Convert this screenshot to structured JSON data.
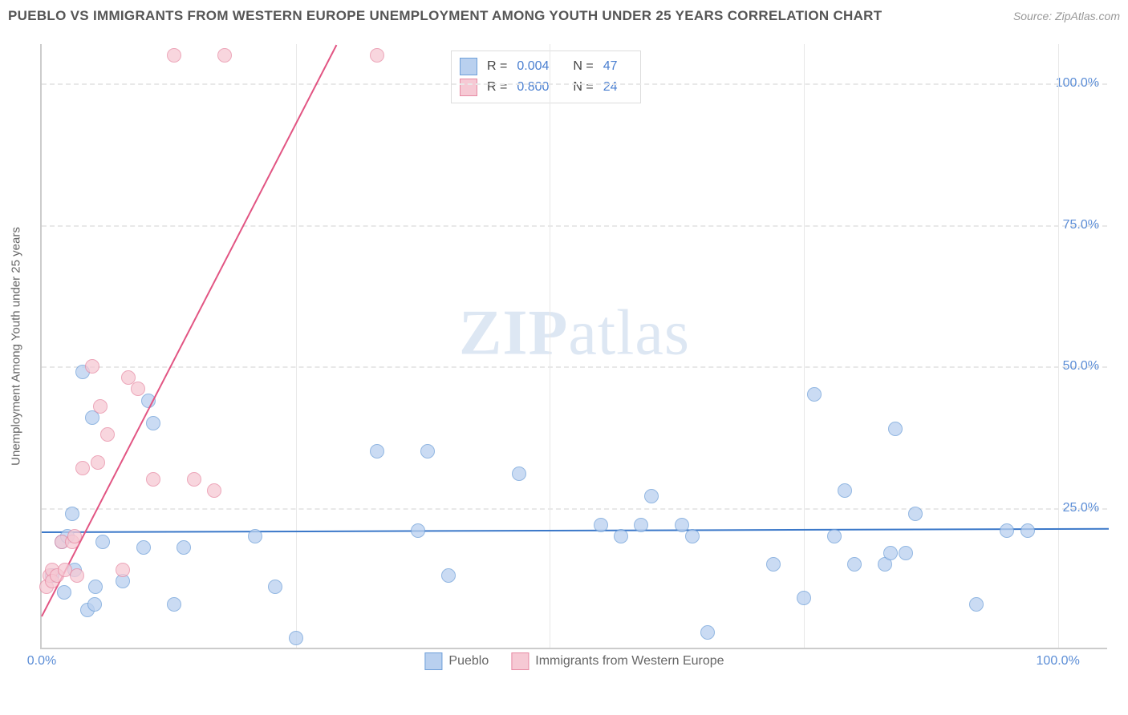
{
  "header": {
    "title": "PUEBLO VS IMMIGRANTS FROM WESTERN EUROPE UNEMPLOYMENT AMONG YOUTH UNDER 25 YEARS CORRELATION CHART",
    "source_prefix": "Source: ",
    "source": "ZipAtlas.com"
  },
  "watermark": {
    "bold": "ZIP",
    "light": "atlas"
  },
  "chart": {
    "type": "scatter",
    "yaxis_label": "Unemployment Among Youth under 25 years",
    "xlim": [
      0,
      105
    ],
    "ylim": [
      0,
      107
    ],
    "background_color": "#ffffff",
    "grid_color": "#e8e8e8",
    "axis_color": "#cccccc",
    "yticks": [
      {
        "v": 25,
        "label": "25.0%"
      },
      {
        "v": 50,
        "label": "50.0%"
      },
      {
        "v": 75,
        "label": "75.0%"
      },
      {
        "v": 100,
        "label": "100.0%"
      }
    ],
    "xticks": [
      {
        "v": 0,
        "label": "0.0%"
      },
      {
        "v": 25,
        "label": ""
      },
      {
        "v": 50,
        "label": ""
      },
      {
        "v": 75,
        "label": ""
      },
      {
        "v": 100,
        "label": "100.0%"
      }
    ],
    "series": [
      {
        "key": "pueblo",
        "label": "Pueblo",
        "fill": "#b9d0ef",
        "stroke": "#6e9fd9",
        "trend_color": "#3b78c9",
        "R_label": "R =",
        "R": "0.004",
        "N_label": "N =",
        "N": "47",
        "trend": {
          "x1": 0,
          "y1": 20.8,
          "x2": 105,
          "y2": 21.4
        },
        "points": [
          {
            "x": 1,
            "y": 13
          },
          {
            "x": 2,
            "y": 19
          },
          {
            "x": 2.2,
            "y": 10
          },
          {
            "x": 2.5,
            "y": 20
          },
          {
            "x": 3,
            "y": 24
          },
          {
            "x": 3.2,
            "y": 14
          },
          {
            "x": 4,
            "y": 49
          },
          {
            "x": 4.5,
            "y": 7
          },
          {
            "x": 5,
            "y": 41
          },
          {
            "x": 5.2,
            "y": 8
          },
          {
            "x": 5.3,
            "y": 11
          },
          {
            "x": 6,
            "y": 19
          },
          {
            "x": 8,
            "y": 12
          },
          {
            "x": 10,
            "y": 18
          },
          {
            "x": 10.5,
            "y": 44
          },
          {
            "x": 11,
            "y": 40
          },
          {
            "x": 13,
            "y": 8
          },
          {
            "x": 14,
            "y": 18
          },
          {
            "x": 21,
            "y": 20
          },
          {
            "x": 23,
            "y": 11
          },
          {
            "x": 25,
            "y": 2
          },
          {
            "x": 33,
            "y": 35
          },
          {
            "x": 37,
            "y": 21
          },
          {
            "x": 38,
            "y": 35
          },
          {
            "x": 40,
            "y": 13
          },
          {
            "x": 47,
            "y": 31
          },
          {
            "x": 55,
            "y": 22
          },
          {
            "x": 57,
            "y": 20
          },
          {
            "x": 59,
            "y": 22
          },
          {
            "x": 60,
            "y": 27
          },
          {
            "x": 63,
            "y": 22
          },
          {
            "x": 64,
            "y": 20
          },
          {
            "x": 65.5,
            "y": 3
          },
          {
            "x": 72,
            "y": 15
          },
          {
            "x": 75,
            "y": 9
          },
          {
            "x": 76,
            "y": 45
          },
          {
            "x": 78,
            "y": 20
          },
          {
            "x": 79,
            "y": 28
          },
          {
            "x": 80,
            "y": 15
          },
          {
            "x": 83,
            "y": 15
          },
          {
            "x": 83.5,
            "y": 17
          },
          {
            "x": 84,
            "y": 39
          },
          {
            "x": 85,
            "y": 17
          },
          {
            "x": 86,
            "y": 24
          },
          {
            "x": 92,
            "y": 8
          },
          {
            "x": 95,
            "y": 21
          },
          {
            "x": 97,
            "y": 21
          }
        ]
      },
      {
        "key": "immigrants",
        "label": "Immigrants from Western Europe",
        "fill": "#f6c9d4",
        "stroke": "#e78aa3",
        "trend_color": "#e25583",
        "R_label": "R =",
        "R": "0.800",
        "N_label": "N =",
        "N": "24",
        "trend": {
          "x1": 0,
          "y1": 6,
          "x2": 29,
          "y2": 107
        },
        "points": [
          {
            "x": 0.5,
            "y": 11
          },
          {
            "x": 0.8,
            "y": 13
          },
          {
            "x": 1,
            "y": 14
          },
          {
            "x": 1,
            "y": 12
          },
          {
            "x": 1.5,
            "y": 13
          },
          {
            "x": 2,
            "y": 19
          },
          {
            "x": 2.3,
            "y": 14
          },
          {
            "x": 3,
            "y": 19
          },
          {
            "x": 3.2,
            "y": 20
          },
          {
            "x": 3.5,
            "y": 13
          },
          {
            "x": 4,
            "y": 32
          },
          {
            "x": 5,
            "y": 50
          },
          {
            "x": 5.5,
            "y": 33
          },
          {
            "x": 5.8,
            "y": 43
          },
          {
            "x": 6.5,
            "y": 38
          },
          {
            "x": 8,
            "y": 14
          },
          {
            "x": 8.5,
            "y": 48
          },
          {
            "x": 9.5,
            "y": 46
          },
          {
            "x": 11,
            "y": 30
          },
          {
            "x": 13,
            "y": 105
          },
          {
            "x": 15,
            "y": 30
          },
          {
            "x": 17,
            "y": 28
          },
          {
            "x": 18,
            "y": 105
          },
          {
            "x": 33,
            "y": 105
          }
        ]
      }
    ]
  }
}
